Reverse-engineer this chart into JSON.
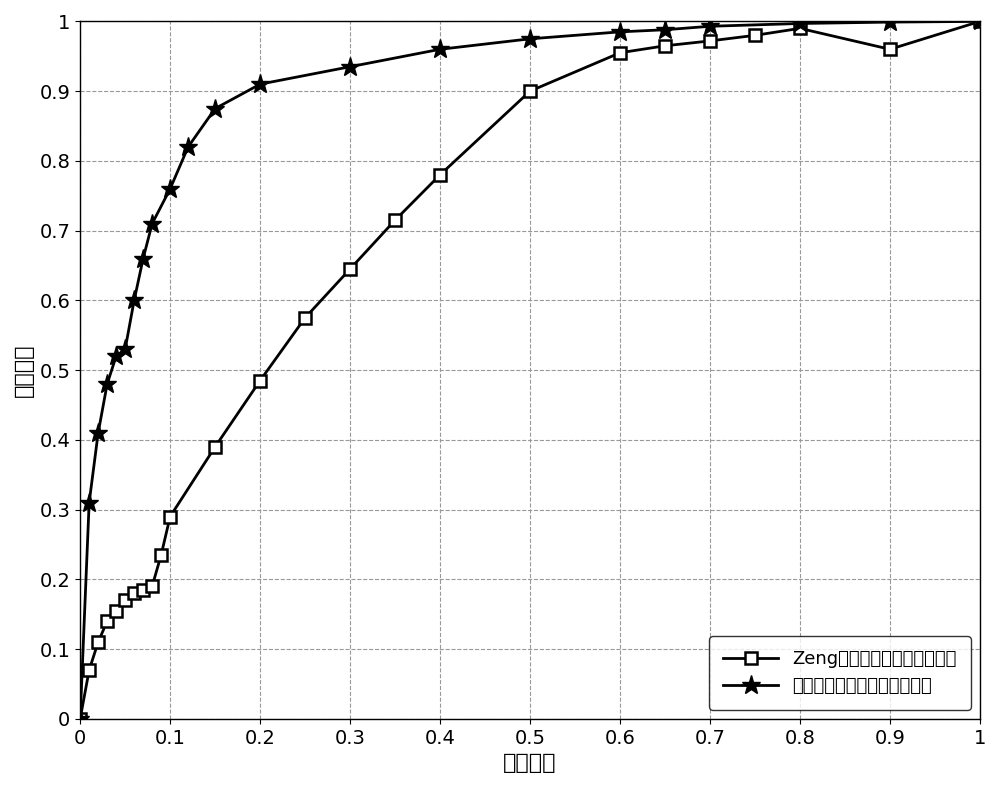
{
  "title": "",
  "xlabel": "虚警概率",
  "ylabel": "检测概率",
  "xlim": [
    0,
    1
  ],
  "ylim": [
    0,
    1
  ],
  "xticks": [
    0,
    0.1,
    0.2,
    0.3,
    0.4,
    0.5,
    0.6,
    0.7,
    0.8,
    0.9,
    1.0
  ],
  "yticks": [
    0,
    0.1,
    0.2,
    0.3,
    0.4,
    0.5,
    0.6,
    0.7,
    0.8,
    0.9,
    1.0
  ],
  "series1_label": "Zeng等人提出的频谱感知方法",
  "series2_label": "本发明所提出的频谱感知方法",
  "series1_x": [
    0,
    0.01,
    0.02,
    0.03,
    0.04,
    0.05,
    0.06,
    0.07,
    0.08,
    0.09,
    0.1,
    0.15,
    0.2,
    0.25,
    0.3,
    0.35,
    0.4,
    0.5,
    0.6,
    0.65,
    0.7,
    0.75,
    0.8,
    0.9,
    1.0
  ],
  "series1_y": [
    0,
    0.07,
    0.11,
    0.14,
    0.155,
    0.17,
    0.18,
    0.185,
    0.19,
    0.235,
    0.29,
    0.39,
    0.485,
    0.575,
    0.645,
    0.715,
    0.78,
    0.9,
    0.955,
    0.965,
    0.972,
    0.98,
    0.99,
    0.96,
    1.0
  ],
  "series2_x": [
    0,
    0.01,
    0.02,
    0.03,
    0.04,
    0.05,
    0.06,
    0.07,
    0.08,
    0.1,
    0.12,
    0.15,
    0.2,
    0.3,
    0.4,
    0.5,
    0.6,
    0.65,
    0.7,
    0.8,
    0.9,
    1.0
  ],
  "series2_y": [
    0,
    0.31,
    0.41,
    0.48,
    0.52,
    0.53,
    0.6,
    0.66,
    0.71,
    0.76,
    0.82,
    0.875,
    0.91,
    0.935,
    0.96,
    0.975,
    0.985,
    0.988,
    0.993,
    0.997,
    0.999,
    1.0
  ],
  "line_color": "#000000",
  "background_color": "#ffffff",
  "grid_color": "#999999",
  "legend_loc": "lower right",
  "label_font_size": 16,
  "tick_font_size": 14
}
